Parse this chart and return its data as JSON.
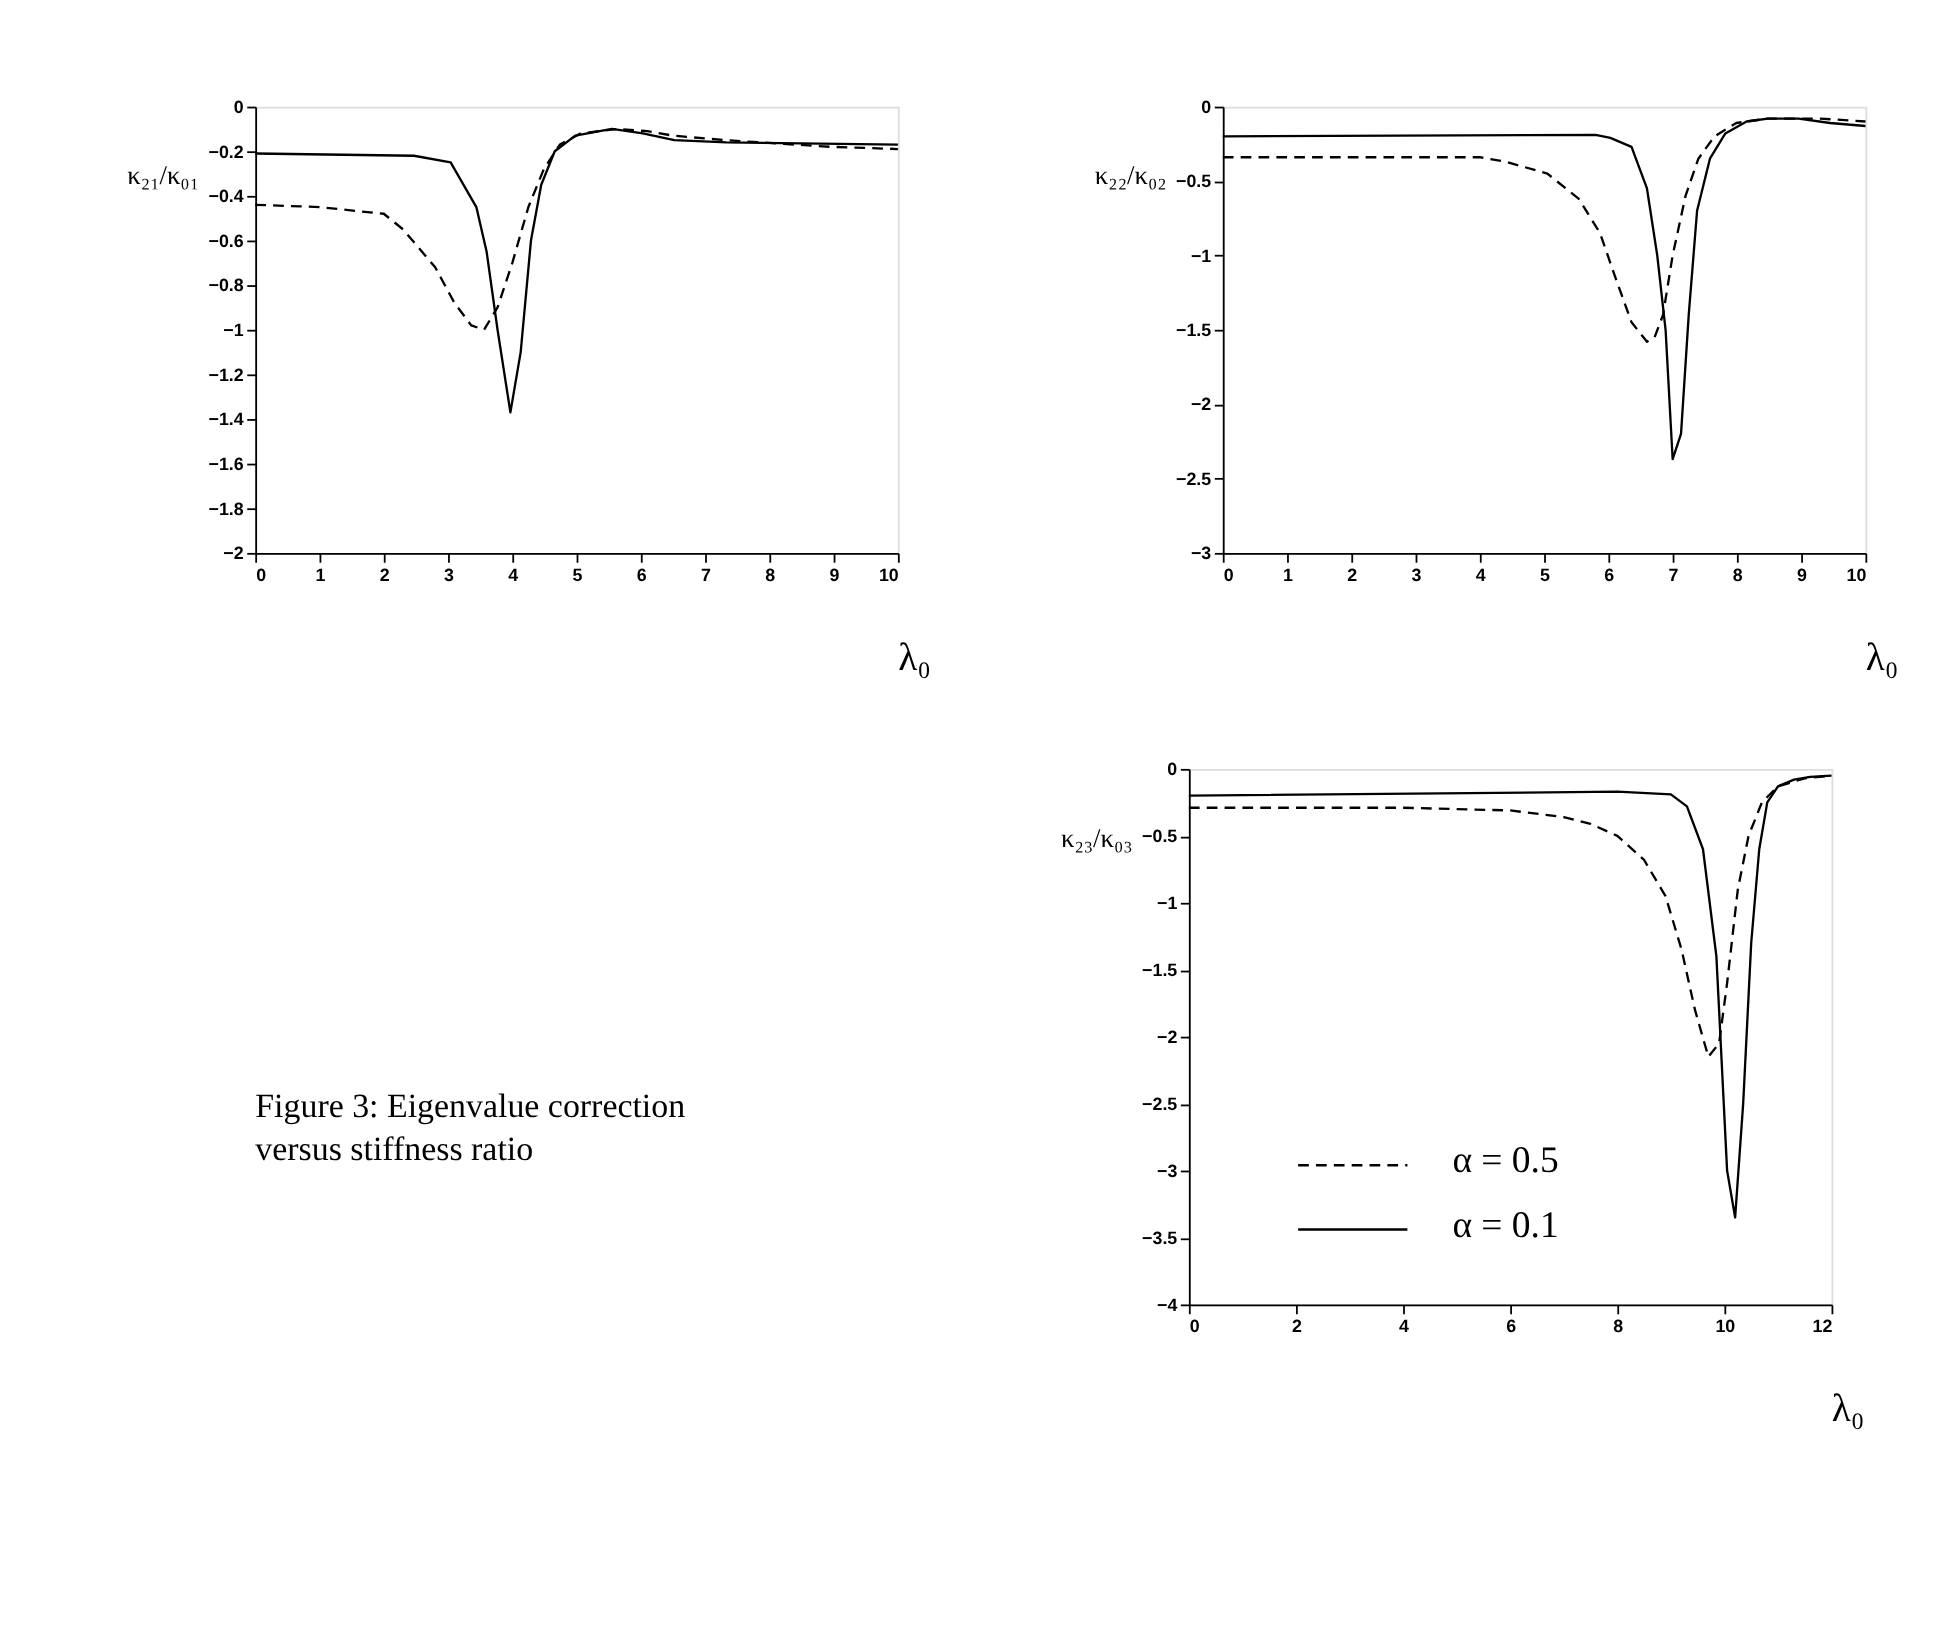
{
  "chart_data": [
    {
      "type": "line",
      "xlabel": "λ₀",
      "ylabel": "κ₂₁/κ₀₁",
      "xlim": [
        0,
        10
      ],
      "ylim": [
        -2,
        0
      ],
      "xticks": [
        0,
        1,
        2,
        3,
        4,
        5,
        6,
        7,
        8,
        9,
        10
      ],
      "yticks": [
        -2,
        -1.8,
        -1.6,
        -1.4,
        -1.2,
        -1,
        -0.8,
        -0.6,
        -0.4,
        -0.2,
        0
      ],
      "grid": false,
      "series": [
        {
          "color": "#000000",
          "line_style": "dashed",
          "x": [
            0,
            1,
            1.66,
            2,
            2.3,
            2.8,
            3.1,
            3.36,
            3.56,
            3.77,
            4.0,
            4.25,
            4.49,
            4.74,
            5.06,
            5.63,
            6.1,
            6.5,
            7.3,
            8.95,
            10
          ],
          "values": [
            -0.44,
            -0.45,
            -0.47,
            -0.48,
            -0.55,
            -0.72,
            -0.88,
            -0.98,
            -1.0,
            -0.9,
            -0.7,
            -0.45,
            -0.28,
            -0.17,
            -0.12,
            -0.1,
            -0.11,
            -0.13,
            -0.15,
            -0.18,
            -0.19
          ]
        },
        {
          "color": "#000000",
          "line_style": "solid",
          "x": [
            0,
            2.47,
            3.04,
            3.44,
            3.6,
            3.77,
            3.97,
            4.13,
            4.29,
            4.45,
            4.66,
            4.98,
            5.55,
            6.03,
            6.52,
            7.33,
            10
          ],
          "values": [
            -0.21,
            -0.22,
            -0.25,
            -0.45,
            -0.65,
            -1.0,
            -1.37,
            -1.1,
            -0.6,
            -0.35,
            -0.2,
            -0.13,
            -0.1,
            -0.12,
            -0.15,
            -0.16,
            -0.17
          ]
        }
      ]
    },
    {
      "type": "line",
      "xlabel": "λ₀",
      "ylabel": "κ₂₂/κ₀₂",
      "xlim": [
        0,
        10
      ],
      "ylim": [
        -3,
        0
      ],
      "xticks": [
        0,
        1,
        2,
        3,
        4,
        5,
        6,
        7,
        8,
        9,
        10
      ],
      "yticks": [
        -3,
        -2.5,
        -2,
        -1.5,
        -1,
        -0.5,
        0
      ],
      "grid": false,
      "series": [
        {
          "color": "#000000",
          "line_style": "dashed",
          "x": [
            0,
            4,
            4.4,
            5.05,
            5.54,
            5.87,
            6.11,
            6.36,
            6.6,
            6.72,
            6.85,
            7.0,
            7.2,
            7.4,
            7.65,
            7.99,
            8.48,
            9.29,
            10
          ],
          "values": [
            -0.34,
            -0.34,
            -0.37,
            -0.45,
            -0.62,
            -0.85,
            -1.15,
            -1.45,
            -1.58,
            -1.55,
            -1.4,
            -1.0,
            -0.6,
            -0.35,
            -0.2,
            -0.11,
            -0.08,
            -0.08,
            -0.1
          ]
        },
        {
          "color": "#000000",
          "line_style": "solid",
          "x": [
            0,
            5.8,
            6.03,
            6.36,
            6.6,
            6.76,
            6.89,
            7.0,
            7.13,
            7.25,
            7.38,
            7.58,
            7.82,
            8.15,
            8.48,
            8.96,
            9.45,
            10
          ],
          "values": [
            -0.2,
            -0.19,
            -0.21,
            -0.27,
            -0.55,
            -1.0,
            -1.5,
            -2.37,
            -2.2,
            -1.4,
            -0.7,
            -0.35,
            -0.18,
            -0.1,
            -0.08,
            -0.08,
            -0.11,
            -0.13
          ]
        }
      ]
    },
    {
      "type": "line",
      "xlabel": "λ₀",
      "ylabel": "κ₂₃/κ₀₃",
      "xlim": [
        0,
        12
      ],
      "ylim": [
        -4,
        0
      ],
      "xticks": [
        0,
        2,
        4,
        6,
        8,
        10,
        12
      ],
      "yticks": [
        -4,
        -3.5,
        -3,
        -2.5,
        -2,
        -1.5,
        -1,
        -0.5,
        0
      ],
      "grid": false,
      "legend": "bottom left",
      "annotations": [
        "Figure 3: Eigenvalue correction versus stiffness ratio"
      ],
      "series": [
        {
          "name": "α = 0.5",
          "color": "#000000",
          "line_style": "dashed",
          "x": [
            0,
            4,
            6,
            7,
            7.5,
            8,
            8.5,
            8.9,
            9.2,
            9.45,
            9.7,
            9.9,
            10.05,
            10.25,
            10.45,
            10.7,
            11.0,
            11.5,
            12
          ],
          "values": [
            -0.29,
            -0.29,
            -0.31,
            -0.36,
            -0.41,
            -0.5,
            -0.68,
            -0.95,
            -1.35,
            -1.8,
            -2.15,
            -2.05,
            -1.6,
            -0.9,
            -0.5,
            -0.25,
            -0.13,
            -0.07,
            -0.05
          ]
        },
        {
          "name": "α = 0.1",
          "color": "#000000",
          "line_style": "solid",
          "x": [
            0,
            8,
            9,
            9.3,
            9.6,
            9.85,
            10.05,
            10.2,
            10.35,
            10.5,
            10.65,
            10.8,
            11.0,
            11.3,
            11.6,
            12
          ],
          "values": [
            -0.2,
            -0.17,
            -0.19,
            -0.28,
            -0.6,
            -1.4,
            -3.0,
            -3.35,
            -2.5,
            -1.3,
            -0.6,
            -0.25,
            -0.13,
            -0.08,
            -0.06,
            -0.05
          ]
        }
      ]
    }
  ]
}
